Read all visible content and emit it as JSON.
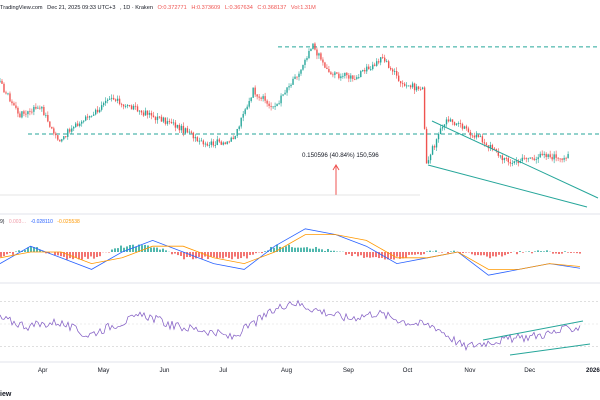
{
  "header": {
    "publisher": "TradingView.com",
    "date": "Dec 21, 2025 09:33 UTC+3",
    "symbol": ", 1D · Kraken",
    "open": "O:0.372771",
    "high": "H:0.373609",
    "low": "L:0.367634",
    "close": "C:0.368137",
    "volume": "Vol:1.31M"
  },
  "macd_legend": {
    "label": "9)",
    "macd": "0.003…",
    "signal": "-0.028110",
    "hist": "-0.025538"
  },
  "annotation": {
    "measure": "0.150596 (40.84%) 150,596"
  },
  "footer": {
    "logo": "iew"
  },
  "colors": {
    "up": "#26a69a",
    "down": "#ef5350",
    "trendline": "#26a69a",
    "macd_line": "#2962ff",
    "signal_line": "#ff9800",
    "rsi_line": "#7e57c2",
    "arrow": "#ef5350"
  },
  "chart_data": [
    {
      "type": "candlestick",
      "title": "",
      "x_axis": {
        "type": "date",
        "tick_labels": [
          "Apr",
          "May",
          "Jun",
          "Jul",
          "Aug",
          "Sep",
          "Oct",
          "Nov",
          "Dec",
          "2026"
        ],
        "range": [
          "2025-03-10",
          "2026-01-05"
        ]
      },
      "y_axis": {
        "visible": false,
        "range": [
          0.2,
          0.8
        ]
      },
      "series": [
        {
          "values_approx": [
            {
              "x": "2025-03-10",
              "close": 0.6
            },
            {
              "x": "2025-03-20",
              "close": 0.5
            },
            {
              "x": "2025-03-30",
              "close": 0.53
            },
            {
              "x": "2025-04-08",
              "close": 0.42
            },
            {
              "x": "2025-04-20",
              "close": 0.48
            },
            {
              "x": "2025-05-05",
              "close": 0.55
            },
            {
              "x": "2025-05-20",
              "close": 0.51
            },
            {
              "x": "2025-06-05",
              "close": 0.47
            },
            {
              "x": "2025-06-22",
              "close": 0.41
            },
            {
              "x": "2025-07-05",
              "close": 0.42
            },
            {
              "x": "2025-07-15",
              "close": 0.58
            },
            {
              "x": "2025-07-25",
              "close": 0.52
            },
            {
              "x": "2025-08-08",
              "close": 0.64
            },
            {
              "x": "2025-08-14",
              "close": 0.72
            },
            {
              "x": "2025-08-22",
              "close": 0.63
            },
            {
              "x": "2025-09-05",
              "close": 0.62
            },
            {
              "x": "2025-09-18",
              "close": 0.68
            },
            {
              "x": "2025-09-28",
              "close": 0.6
            },
            {
              "x": "2025-10-08",
              "close": 0.58
            },
            {
              "x": "2025-10-10",
              "close": 0.35
            },
            {
              "x": "2025-10-20",
              "close": 0.49
            },
            {
              "x": "2025-11-05",
              "close": 0.43
            },
            {
              "x": "2025-11-20",
              "close": 0.35
            },
            {
              "x": "2025-12-05",
              "close": 0.37
            },
            {
              "x": "2025-12-21",
              "close": 0.368
            }
          ]
        }
      ],
      "horizontal_levels": [
        0.715,
        0.44
      ],
      "falling_wedge": true
    },
    {
      "type": "line",
      "title": "",
      "series": [
        {
          "name": "MACD",
          "values_approx": [
            -0.02,
            0.01,
            -0.01,
            -0.03,
            0.0,
            0.02,
            0.0,
            -0.02,
            -0.03,
            0.01,
            0.04,
            0.03,
            0.01,
            -0.02,
            -0.01,
            0.0,
            -0.04,
            -0.03,
            -0.02,
            -0.028
          ]
        },
        {
          "name": "Signal",
          "values_approx": [
            -0.01,
            0.0,
            0.0,
            -0.02,
            -0.01,
            0.01,
            0.01,
            -0.01,
            -0.02,
            0.0,
            0.03,
            0.03,
            0.02,
            -0.01,
            -0.01,
            0.0,
            -0.03,
            -0.03,
            -0.02,
            -0.025
          ]
        }
      ]
    },
    {
      "type": "line",
      "title": "",
      "series": [
        {
          "name": "RSI",
          "values_approx": [
            55,
            48,
            52,
            40,
            50,
            58,
            48,
            45,
            38,
            55,
            70,
            62,
            55,
            60,
            52,
            48,
            30,
            35,
            38,
            42,
            48
          ]
        }
      ],
      "rising_channel": true
    }
  ]
}
